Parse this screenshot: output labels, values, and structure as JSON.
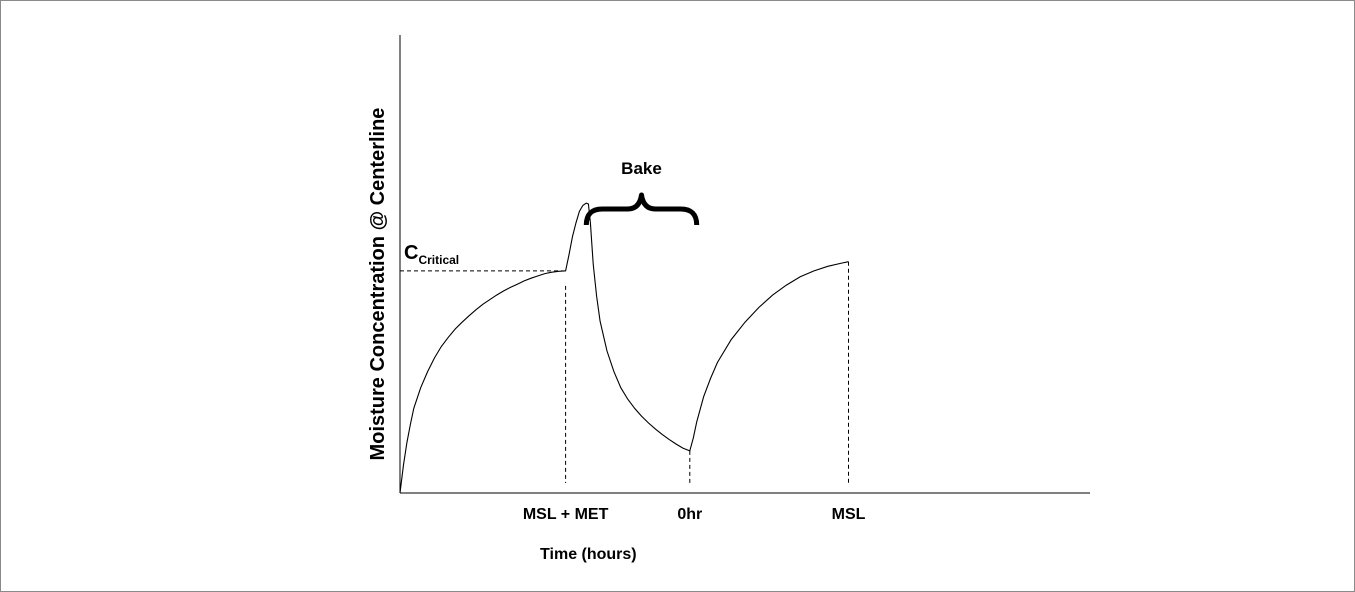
{
  "chart_data": {
    "type": "line",
    "title": "",
    "xlabel": "Time (hours)",
    "ylabel": "Moisture Concentration @ Centerline",
    "xlim": [
      0,
      100
    ],
    "ylim": [
      0,
      100
    ],
    "grid": false,
    "x_ticks": [
      {
        "x": 24,
        "label": "MSL + MET"
      },
      {
        "x": 42,
        "label": "0hr"
      },
      {
        "x": 65,
        "label": "MSL"
      }
    ],
    "critical": {
      "prefix": "C",
      "subscript": "Critical",
      "y": 48.5
    },
    "annotations": [
      {
        "text": "Bake",
        "x_range": [
          27,
          43
        ]
      }
    ],
    "series": [
      {
        "x": [
          0,
          0.5,
          1,
          1.5,
          2,
          3,
          4,
          5,
          6,
          7,
          8,
          9,
          10,
          11,
          12,
          13,
          14,
          15,
          16,
          17,
          18,
          19,
          20,
          21,
          22,
          23,
          24,
          24.5,
          25,
          25.5,
          26,
          26.5,
          27,
          27.3,
          27.6,
          28,
          28.5,
          29,
          30,
          31,
          32,
          33,
          34,
          35,
          36,
          37,
          38,
          39,
          40,
          41,
          42,
          42.5,
          43,
          44,
          45,
          46,
          48,
          50,
          52,
          54,
          56,
          58,
          60,
          62,
          64,
          65
        ],
        "y": [
          0,
          6,
          11,
          15,
          18.5,
          23,
          26.5,
          29.5,
          32,
          34,
          35.8,
          37.3,
          38.7,
          40,
          41.2,
          42.2,
          43.2,
          44.1,
          44.9,
          45.6,
          46.3,
          46.9,
          47.4,
          47.9,
          48.2,
          48.4,
          48.5,
          52,
          56,
          59,
          61.5,
          62.8,
          63.3,
          63.1,
          59,
          50,
          43,
          37.5,
          31,
          26.5,
          23,
          20.5,
          18.5,
          16.8,
          15.3,
          14,
          12.8,
          11.7,
          10.7,
          9.8,
          9.2,
          12,
          15.5,
          21,
          25,
          28.5,
          33.5,
          37.3,
          40.5,
          43.2,
          45.4,
          47.2,
          48.5,
          49.5,
          50.2,
          50.5
        ]
      }
    ]
  }
}
